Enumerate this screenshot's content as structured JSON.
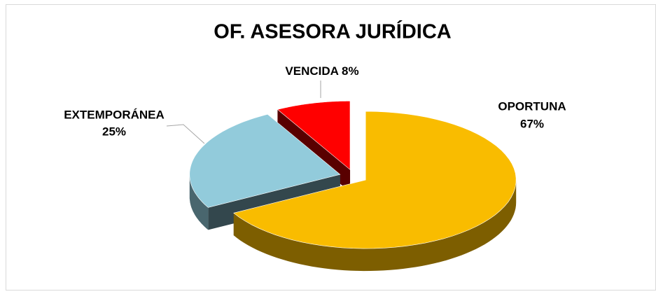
{
  "chart_data": {
    "type": "pie3d",
    "title": "OF. ASESORA JURÍDICA",
    "categories": [
      "OPORTUNA",
      "EXTEMPORÁNEA",
      "VENCIDA"
    ],
    "values": [
      67,
      25,
      8
    ],
    "value_labels": [
      "67%",
      "25%",
      "8%"
    ],
    "colors": [
      "#f9bc00",
      "#92cbdb",
      "#ff0000"
    ]
  }
}
